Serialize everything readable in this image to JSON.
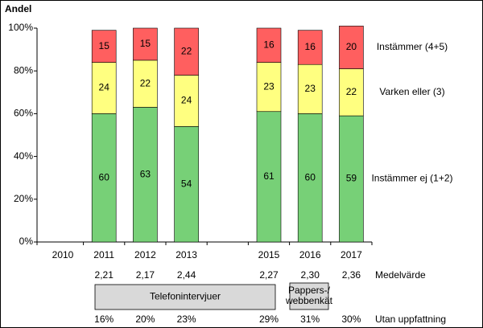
{
  "chart_data": {
    "type": "stacked_bar",
    "y_label": "Andel",
    "categories": [
      "2010",
      "2011",
      "2012",
      "2013",
      null,
      "2015",
      "2016",
      "2017"
    ],
    "series": [
      {
        "name": "Instämmer ej (1+2)",
        "color": "#77d077",
        "values": [
          null,
          60,
          63,
          54,
          null,
          61,
          60,
          59
        ]
      },
      {
        "name": "Varken eller (3)",
        "color": "#ffff80",
        "values": [
          null,
          24,
          22,
          24,
          null,
          23,
          23,
          22
        ]
      },
      {
        "name": "Instämmer (4+5)",
        "color": "#ff5f5f",
        "values": [
          null,
          15,
          15,
          22,
          null,
          16,
          16,
          20
        ]
      }
    ],
    "ylim": [
      0,
      100
    ],
    "yticks": [
      {
        "value": 0,
        "label": "0%"
      },
      {
        "value": 20,
        "label": "20%"
      },
      {
        "value": 40,
        "label": "40%"
      },
      {
        "value": 60,
        "label": "60%"
      },
      {
        "value": 80,
        "label": "80%"
      },
      {
        "value": 100,
        "label": "100%"
      }
    ],
    "grid": false,
    "mean_row": {
      "label": "Medelvärde",
      "values": [
        null,
        "2,21",
        "2,17",
        "2,44",
        null,
        "2,27",
        "2,30",
        "2,36"
      ]
    },
    "groups": [
      [
        "Telefonintervjuer"
      ],
      [
        "Pappers-/",
        "webbenkät"
      ]
    ],
    "no_opinion_row": {
      "label": "Utan uppfattning",
      "values": [
        null,
        "16%",
        "20%",
        "23%",
        null,
        "29%",
        "31%",
        "30%"
      ]
    }
  }
}
